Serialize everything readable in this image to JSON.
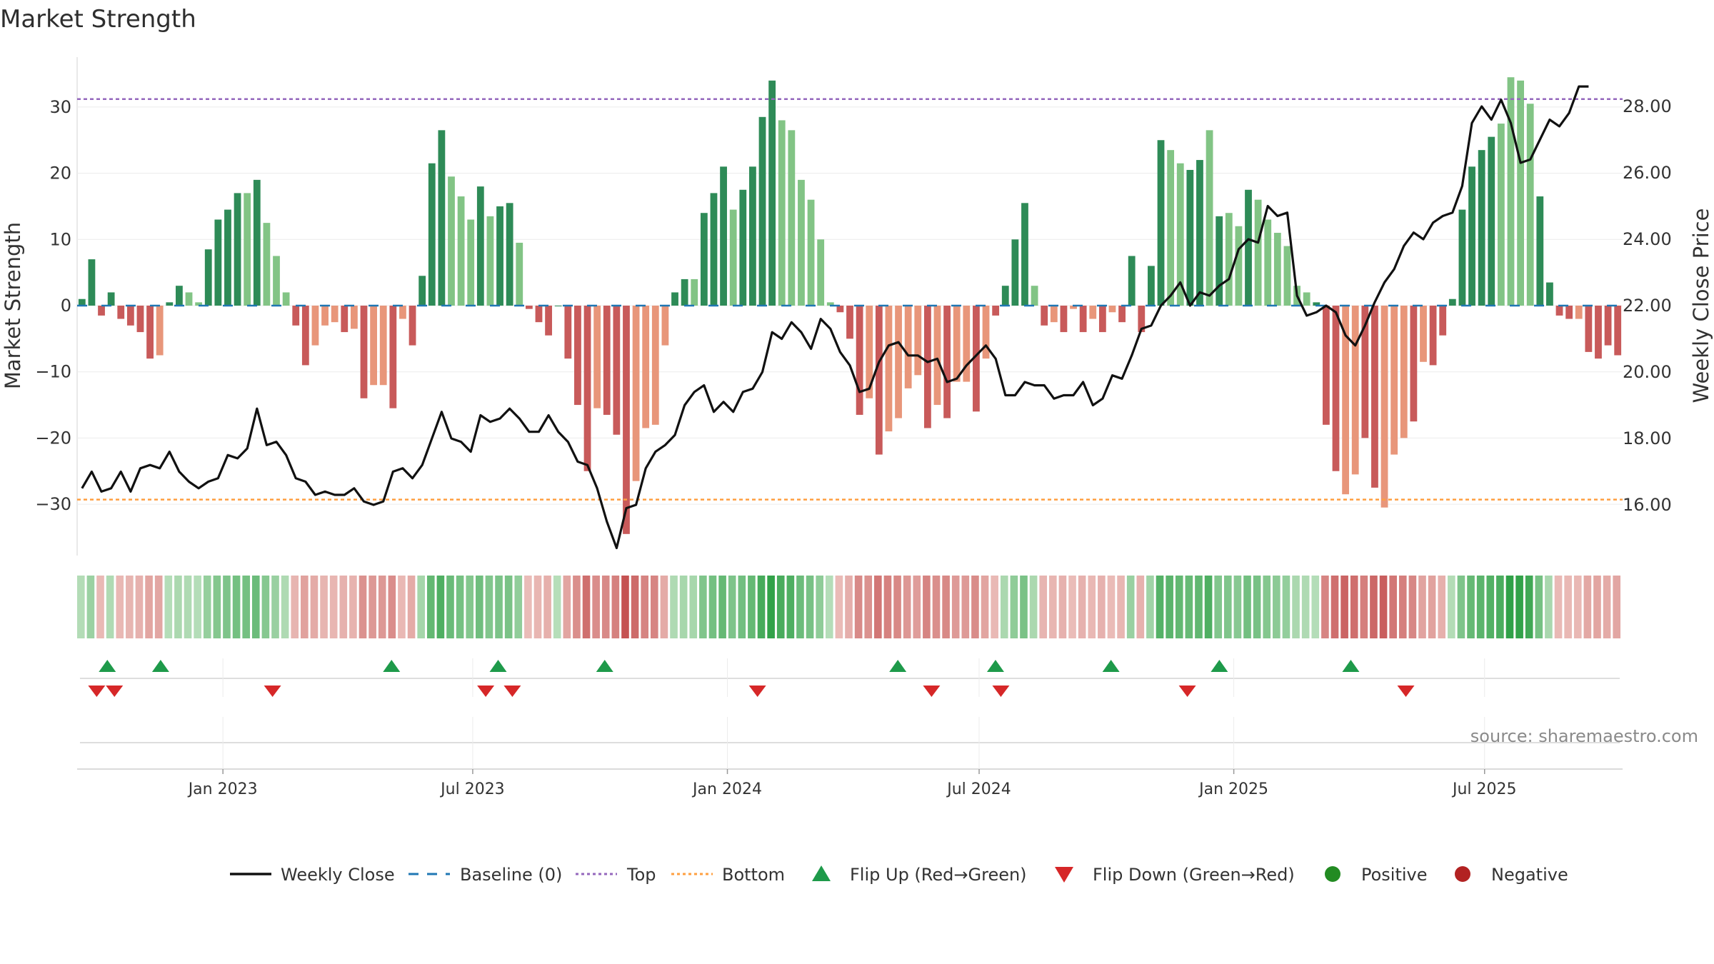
{
  "chart_data": {
    "type": "bar",
    "title": "Market Strength",
    "ylabel": "Market Strength",
    "y2label": "Weekly Close Price",
    "ylim": [
      -37,
      37
    ],
    "y2lim": [
      15.0,
      29.0
    ],
    "yticks": [
      30,
      20,
      10,
      0,
      -10,
      -20,
      -30
    ],
    "ytick_labels": [
      "30",
      "20",
      "10",
      "0",
      "−10",
      "−20",
      "−30"
    ],
    "y2ticks": [
      28.0,
      26.0,
      24.0,
      22.0,
      20.0,
      18.0,
      16.0
    ],
    "y2tick_labels": [
      "28.00",
      "26.00",
      "24.00",
      "22.00",
      "20.00",
      "18.00",
      "16.00"
    ],
    "top_level": 31.2,
    "bottom_level": -29.3,
    "xtick_labels": [
      "Jan 2023",
      "Jul 2023",
      "Jan 2024",
      "Jul 2024",
      "Jan 2025",
      "Jul 2025"
    ],
    "xtick_index": [
      14.5,
      40.2,
      66.4,
      92.3,
      118.5,
      144.3
    ],
    "source": "source: sharemaestro.com",
    "colors": {
      "pos_dark": "#2e8b57",
      "pos_light": "#82c485",
      "neg_dark": "#c85a5a",
      "neg_light": "#e8967a",
      "close": "#111111",
      "baseline": "#1f77b4",
      "top": "#9467bd",
      "bottom": "#ff9f40",
      "flip_up": "#1e9a4a",
      "flip_down": "#d62728",
      "positive": "#228b22",
      "negative": "#b22222"
    },
    "strength": [
      1,
      7,
      -1.5,
      2,
      -2,
      -3,
      -4,
      -8,
      -7.5,
      0.5,
      3,
      2,
      0.5,
      8.5,
      13,
      14.5,
      17,
      17,
      19,
      12.5,
      7.5,
      2,
      -3,
      -9,
      -6,
      -3,
      -2.5,
      -4,
      -3.5,
      -14,
      -12,
      -12,
      -15.5,
      -2,
      -6,
      4.5,
      21.5,
      26.5,
      19.5,
      16.5,
      13,
      18,
      13.5,
      15,
      15.5,
      9.5,
      -0.5,
      -2.5,
      -4.5,
      0,
      -8,
      -15,
      -25,
      -15.5,
      -16.5,
      -19.5,
      -34.5,
      -26.5,
      -18.5,
      -18,
      -6,
      2,
      4,
      4,
      14,
      17,
      21,
      14.5,
      17.5,
      21,
      28.5,
      34,
      28,
      26.5,
      19,
      16,
      10,
      0.5,
      -1,
      -5,
      -16.5,
      -14,
      -22.5,
      -19,
      -17,
      -12.5,
      -10.5,
      -18.5,
      -15,
      -17,
      -11.5,
      -11.5,
      -16,
      -8,
      -1.5,
      3,
      10,
      15.5,
      3,
      -3,
      -2.5,
      -4,
      -0.5,
      -4,
      -2,
      -4,
      -1,
      -2.5,
      7.5,
      -4,
      6,
      25,
      23.5,
      21.5,
      20.5,
      22,
      26.5,
      13.5,
      14,
      12,
      17.5,
      16,
      13,
      11,
      9,
      3,
      2,
      0.5,
      -18,
      -25,
      -28.5,
      -25.5,
      -20,
      -27.5,
      -30.5,
      -22.5,
      -20,
      -17.5,
      -8.5,
      -9,
      -4.5,
      1,
      14.5,
      21,
      23.5,
      25.5,
      27.5,
      34.5,
      34,
      30.5,
      16.5,
      3.5,
      -1.5,
      -2,
      -2,
      -7,
      -8,
      -6,
      -7.5
    ],
    "light": [
      0,
      0,
      0,
      0,
      0,
      0,
      0,
      0,
      1,
      0,
      0,
      1,
      1,
      0,
      0,
      0,
      0,
      1,
      0,
      1,
      1,
      1,
      0,
      0,
      1,
      1,
      1,
      0,
      1,
      0,
      1,
      1,
      0,
      1,
      0,
      0,
      0,
      0,
      1,
      1,
      1,
      0,
      1,
      0,
      0,
      1,
      0,
      0,
      0,
      0,
      0,
      0,
      0,
      1,
      0,
      0,
      0,
      1,
      1,
      1,
      1,
      0,
      0,
      1,
      0,
      0,
      0,
      1,
      0,
      0,
      0,
      0,
      1,
      1,
      1,
      1,
      1,
      1,
      0,
      0,
      0,
      1,
      0,
      1,
      1,
      1,
      1,
      0,
      1,
      0,
      1,
      1,
      0,
      1,
      0,
      0,
      0,
      0,
      1,
      0,
      1,
      0,
      1,
      0,
      1,
      0,
      1,
      0,
      0,
      0,
      0,
      0,
      1,
      1,
      0,
      0,
      1,
      0,
      1,
      1,
      0,
      1,
      1,
      1,
      1,
      1,
      1,
      0,
      0,
      0,
      1,
      1,
      0,
      0,
      1,
      1,
      1,
      0,
      1,
      0,
      0,
      0,
      0,
      0,
      0,
      0,
      1,
      1,
      1,
      1,
      0,
      0,
      0,
      0,
      1,
      0
    ],
    "close": [
      16.5,
      17.0,
      16.4,
      16.5,
      17.0,
      16.4,
      17.1,
      17.2,
      17.1,
      17.6,
      17.0,
      16.7,
      16.5,
      16.7,
      16.8,
      17.5,
      17.4,
      17.7,
      18.9,
      17.8,
      17.9,
      17.5,
      16.8,
      16.7,
      16.3,
      16.4,
      16.3,
      16.3,
      16.5,
      16.1,
      16.0,
      16.1,
      17.0,
      17.1,
      16.8,
      17.2,
      18.0,
      18.8,
      18.0,
      17.9,
      17.6,
      18.7,
      18.5,
      18.6,
      18.9,
      18.6,
      18.2,
      18.2,
      18.7,
      18.2,
      17.9,
      17.3,
      17.2,
      16.5,
      15.5,
      14.7,
      15.9,
      16.0,
      17.1,
      17.6,
      17.8,
      18.1,
      19.0,
      19.4,
      19.6,
      18.8,
      19.1,
      18.8,
      19.4,
      19.5,
      20.0,
      21.2,
      21.0,
      21.5,
      21.2,
      20.7,
      21.6,
      21.3,
      20.6,
      20.2,
      19.4,
      19.5,
      20.3,
      20.8,
      20.9,
      20.5,
      20.5,
      20.3,
      20.4,
      19.7,
      19.8,
      20.2,
      20.5,
      20.8,
      20.4,
      19.3,
      19.3,
      19.7,
      19.6,
      19.6,
      19.2,
      19.3,
      19.3,
      19.7,
      19.0,
      19.2,
      19.9,
      19.8,
      20.5,
      21.3,
      21.4,
      22.0,
      22.3,
      22.7,
      22.0,
      22.4,
      22.3,
      22.6,
      22.8,
      23.7,
      24.0,
      23.9,
      25.0,
      24.7,
      24.8,
      22.3,
      21.7,
      21.8,
      22.0,
      21.8,
      21.1,
      20.8,
      21.4,
      22.1,
      22.7,
      23.1,
      23.8,
      24.2,
      24.0,
      24.5,
      24.7,
      24.8,
      25.6,
      27.5,
      28.0,
      27.6,
      28.2,
      27.5,
      26.3,
      26.4,
      27.0,
      27.6,
      27.4,
      27.8,
      28.6,
      28.6
    ],
    "flip_up_index": [
      1.7,
      4.7,
      17.7,
      23.7,
      29.7,
      46.2,
      51.7,
      58.2,
      64.3,
      71.7
    ],
    "flip_down_index": [
      1.1,
      2.1,
      11.0,
      23.0,
      24.5,
      38.3,
      48.1,
      52.0,
      62.5,
      74.8
    ],
    "legend": [
      "Weekly Close",
      "Baseline (0)",
      "Top",
      "Bottom",
      "Flip Up (Red→Green)",
      "Flip Down (Green→Red)",
      "Positive",
      "Negative"
    ]
  }
}
